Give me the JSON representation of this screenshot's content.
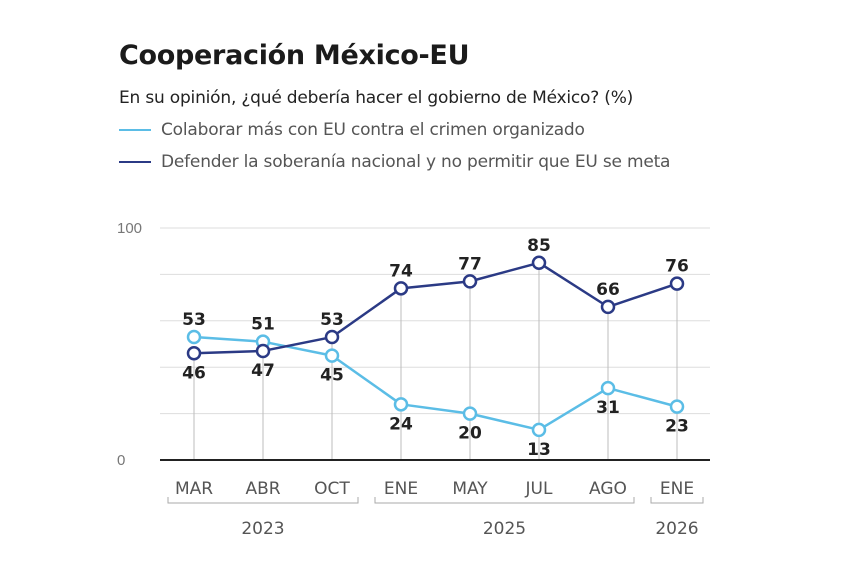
{
  "header": {
    "title": "Cooperación México-EU",
    "subtitle": "En su opinión, ¿qué debería hacer el gobierno de México? (%)"
  },
  "legend": [
    {
      "label": "Colaborar más con EU contra el crimen organizado",
      "color": "#5bbde6"
    },
    {
      "label": "Defender la soberanía nacional y no permitir que EU se meta",
      "color": "#2b3a85"
    }
  ],
  "chart_data": {
    "type": "line",
    "title": "Cooperación México-EU",
    "subtitle": "En su opinión, ¿qué debería hacer el gobierno de México? (%)",
    "categories": [
      "MAR",
      "ABR",
      "OCT",
      "ENE",
      "MAY",
      "JUL",
      "AGO",
      "ENE"
    ],
    "year_groups": [
      {
        "label": "2023",
        "from": 0,
        "to": 2
      },
      {
        "label": "2025",
        "from": 3,
        "to": 6
      },
      {
        "label": "2026",
        "from": 7,
        "to": 7
      }
    ],
    "series": [
      {
        "name": "Colaborar más con EU contra el crimen organizado",
        "color": "#5bbde6",
        "values": [
          53,
          51,
          45,
          24,
          20,
          13,
          31,
          23
        ]
      },
      {
        "name": "Defender la soberanía nacional y no permitir que EU se meta",
        "color": "#2b3a85",
        "values": [
          46,
          47,
          53,
          74,
          77,
          85,
          66,
          76
        ]
      }
    ],
    "ylim": [
      0,
      100
    ],
    "yticks": [
      0,
      100
    ],
    "grid": true,
    "legend_position": "top-left"
  }
}
